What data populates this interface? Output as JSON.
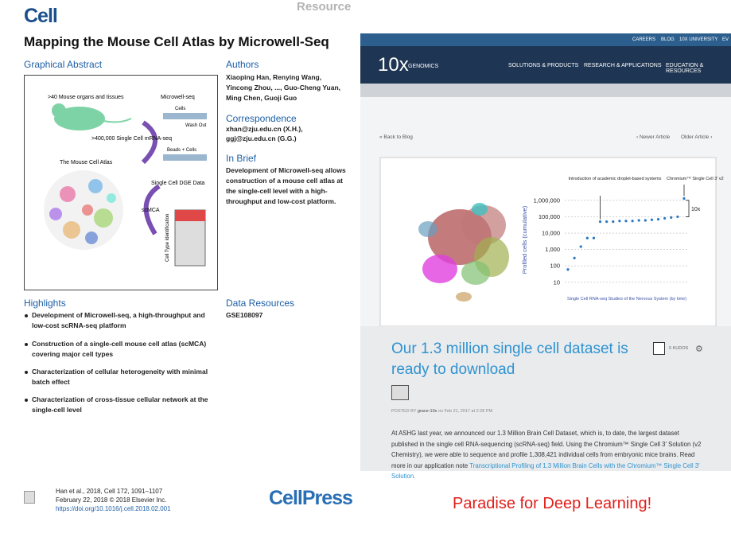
{
  "paper": {
    "journal": "Cell",
    "section": "Resource",
    "title": "Mapping the Mouse Cell Atlas by Microwell-Seq",
    "graphical_abstract": {
      "heading": "Graphical Abstract",
      "labels": [
        ">40 Mouse organs and tissues",
        "Microwell-seq",
        "Cells",
        "Wash Out",
        "Beads + Cells",
        ">400,000 Single Cell mRNA-seq",
        "The Mouse Cell Atlas",
        "Single Cell DGE Data",
        "scMCA",
        "Cell Type Identification"
      ]
    },
    "authors": {
      "heading": "Authors",
      "text": "Xiaoping Han, Renying Wang, Yincong Zhou, ..., Guo-Cheng Yuan, Ming Chen, Guoji Guo"
    },
    "correspondence": {
      "heading": "Correspondence",
      "lines": [
        "xhan@zju.edu.cn (X.H.),",
        "ggj@zju.edu.cn (G.G.)"
      ]
    },
    "in_brief": {
      "heading": "In Brief",
      "text": "Development of Microwell-seq allows construction of a mouse cell atlas at the single-cell level with a high-throughput and low-cost platform."
    },
    "highlights": {
      "heading": "Highlights",
      "items": [
        "Development of Microwell-seq, a high-throughput and low-cost scRNA-seq platform",
        "Construction of a single-cell mouse cell atlas (scMCA) covering major cell types",
        "Characterization of cellular heterogeneity with minimal batch effect",
        "Characterization of cross-tissue cellular network at the single-cell level"
      ]
    },
    "data_resources": {
      "heading": "Data Resources",
      "text": "GSE108097"
    },
    "citation": [
      "Han et al., 2018, Cell 172, 1091–1107",
      "February 22, 2018 © 2018 Elsevier Inc.",
      "https://doi.org/10.1016/j.cell.2018.02.001"
    ],
    "publisher": "CellPress"
  },
  "blog": {
    "top_links": [
      "CAREERS",
      "BLOG",
      "10X UNIVERSITY",
      "EV"
    ],
    "logo": "10x",
    "logo_sub": "GENOMICS",
    "nav": [
      "SOLUTIONS & PRODUCTS",
      "RESEARCH & APPLICATIONS",
      "EDUCATION & RESOURCES"
    ],
    "back": "« Back to Blog",
    "newer": "‹ Newer Article",
    "older": "Older Article ›",
    "figure": {
      "type": "scatter",
      "ylabel": "Profiled cells (cumulative)",
      "xlabel": "Single Cell RNA-seq Studies of the Nervous System (by time)",
      "log_y": true,
      "ylim": [
        5,
        3000000
      ],
      "yticks": [
        10,
        100,
        {
          "value": 1000,
          "label": "1,000"
        },
        {
          "value": 10000,
          "label": "10,000"
        },
        {
          "value": 100000,
          "label": "100,000"
        },
        {
          "value": 1000000,
          "label": "1,000,000"
        }
      ],
      "values": [
        60,
        300,
        1500,
        5000,
        5000,
        50000,
        50000,
        50000,
        55000,
        55000,
        55000,
        60000,
        60000,
        65000,
        70000,
        80000,
        90000,
        100000,
        1300000
      ],
      "color": "#2b78c2",
      "annotations": [
        "Introduction of academic droplet-based systems",
        "Chromium™ Single Cell 3′ v2",
        "10x"
      ]
    },
    "post_title": "Our 1.3 million single cell dataset is ready to download",
    "kudos": "0 KUDOS",
    "posted_by": "POSTED BY",
    "author": "grace-10x",
    "date": "on Feb 21, 2017 at 2:28 PM",
    "body": "At ASHG last year, we announced our 1.3 Million Brain Cell Dataset, which is, to date, the largest dataset published in the single cell RNA-sequencing (scRNA-seq) field. Using the Chromium™ Single Cell 3′ Solution (v2 Chemistry), we were able to sequence and profile 1,308,421 individual cells from embryonic mice brains.  Read more in our application note",
    "link": "Transcriptional Profiling of 1.3 Million Brain Cells with the Chromium™ Single Cell 3′ Solution."
  },
  "caption": "Paradise for Deep Learning!"
}
